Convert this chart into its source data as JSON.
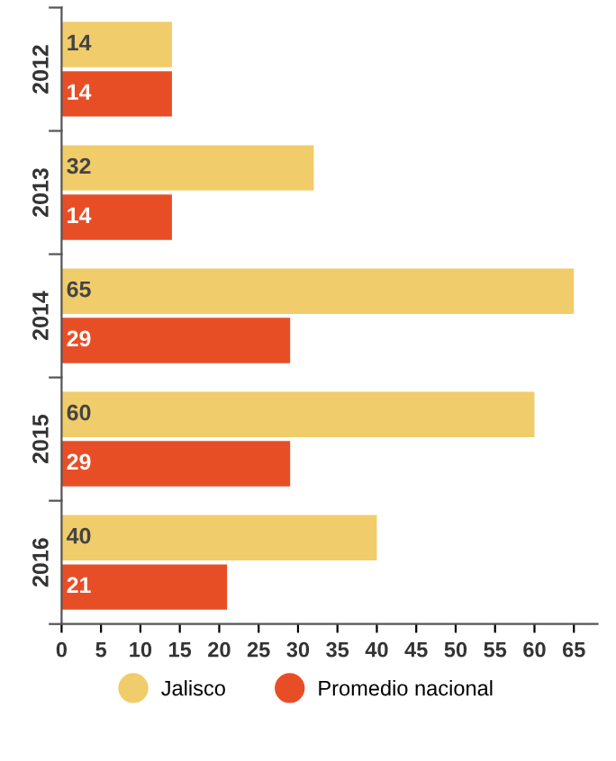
{
  "chart_data": {
    "type": "bar",
    "orientation": "horizontal",
    "categories": [
      "2012",
      "2013",
      "2014",
      "2015",
      "2016"
    ],
    "series": [
      {
        "name": "Jalisco",
        "color": "#f0cd6a",
        "values": [
          14,
          32,
          65,
          60,
          40
        ]
      },
      {
        "name": "Promedio nacional",
        "color": "#e84e26",
        "values": [
          14,
          14,
          29,
          29,
          21
        ]
      }
    ],
    "xlim": [
      0,
      68
    ],
    "xticks": [
      0,
      5,
      10,
      15,
      20,
      25,
      30,
      35,
      40,
      45,
      50,
      55,
      60,
      65
    ],
    "data_labels": true,
    "legend": "bottom",
    "marker": "circle",
    "grid": false
  }
}
